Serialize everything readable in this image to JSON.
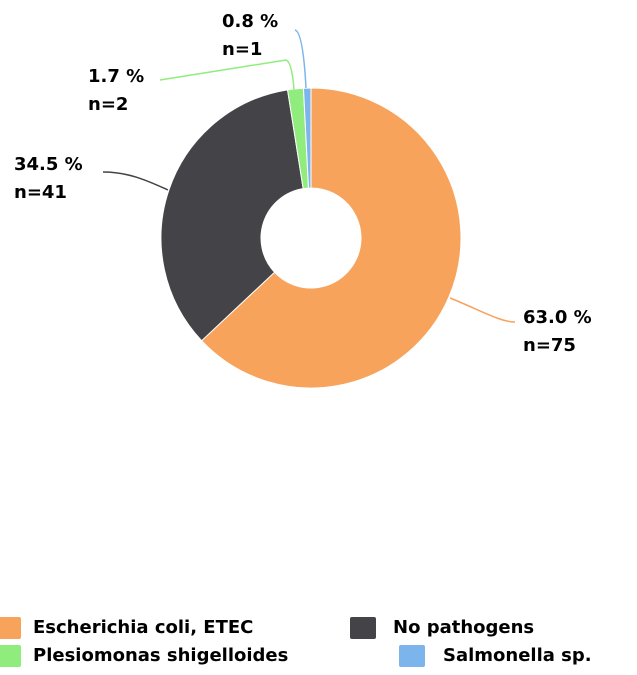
{
  "chart_data": {
    "type": "pie",
    "categories": [
      "Escherichia coli, ETEC",
      "No pathogens",
      "Plesiomonas shigelloides",
      "Salmonella sp."
    ],
    "values": [
      63.0,
      34.5,
      1.7,
      0.8
    ],
    "value_labels": [
      "63.0 %",
      "34.5 %",
      "1.7 %",
      "0.8 %"
    ],
    "counts": [
      75,
      41,
      2,
      1
    ],
    "count_labels": [
      "n=75",
      "n=41",
      "n=2",
      "n=1"
    ],
    "colors": [
      "#f7a35c",
      "#434348",
      "#90ed7d",
      "#7cb5ec"
    ],
    "legend": "bottom"
  }
}
